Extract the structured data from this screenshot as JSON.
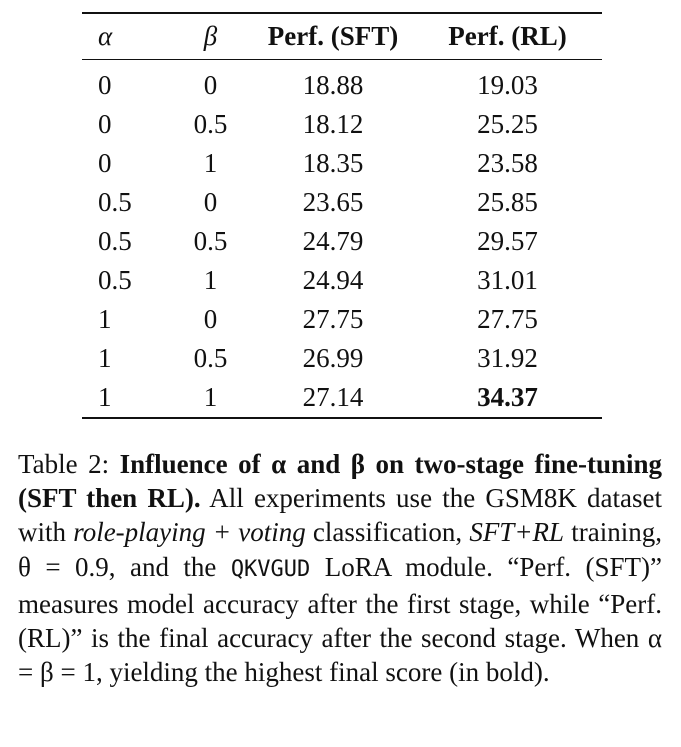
{
  "table": {
    "headers": [
      "α",
      "β",
      "Perf. (SFT)",
      "Perf. (RL)"
    ],
    "rows": [
      [
        "0",
        "0",
        "18.88",
        "19.03"
      ],
      [
        "0",
        "0.5",
        "18.12",
        "25.25"
      ],
      [
        "0",
        "1",
        "18.35",
        "23.58"
      ],
      [
        "0.5",
        "0",
        "23.65",
        "25.85"
      ],
      [
        "0.5",
        "0.5",
        "24.79",
        "29.57"
      ],
      [
        "0.5",
        "1",
        "24.94",
        "31.01"
      ],
      [
        "1",
        "0",
        "27.75",
        "27.75"
      ],
      [
        "1",
        "0.5",
        "26.99",
        "31.92"
      ],
      [
        "1",
        "1",
        "27.14",
        "34.37"
      ]
    ],
    "bold_cell": "34.37"
  },
  "caption": {
    "label": "Table 2: ",
    "bold_title": "Influence of α and β on two-stage fine-tuning (SFT then RL).",
    "t1": " All experiments use the GSM8K dataset with ",
    "i1": "role-playing + voting",
    "t2": " classification, ",
    "i2": "SFT+RL",
    "t3": " training, θ = 0.9, and the ",
    "m1": "QKVGUD",
    "t4": " LoRA module. “Perf. (SFT)” measures model accuracy after the first stage, while “Perf. (RL)” is the final accuracy after the second stage. When α = β = 1, yielding the highest final score (in bold)."
  }
}
